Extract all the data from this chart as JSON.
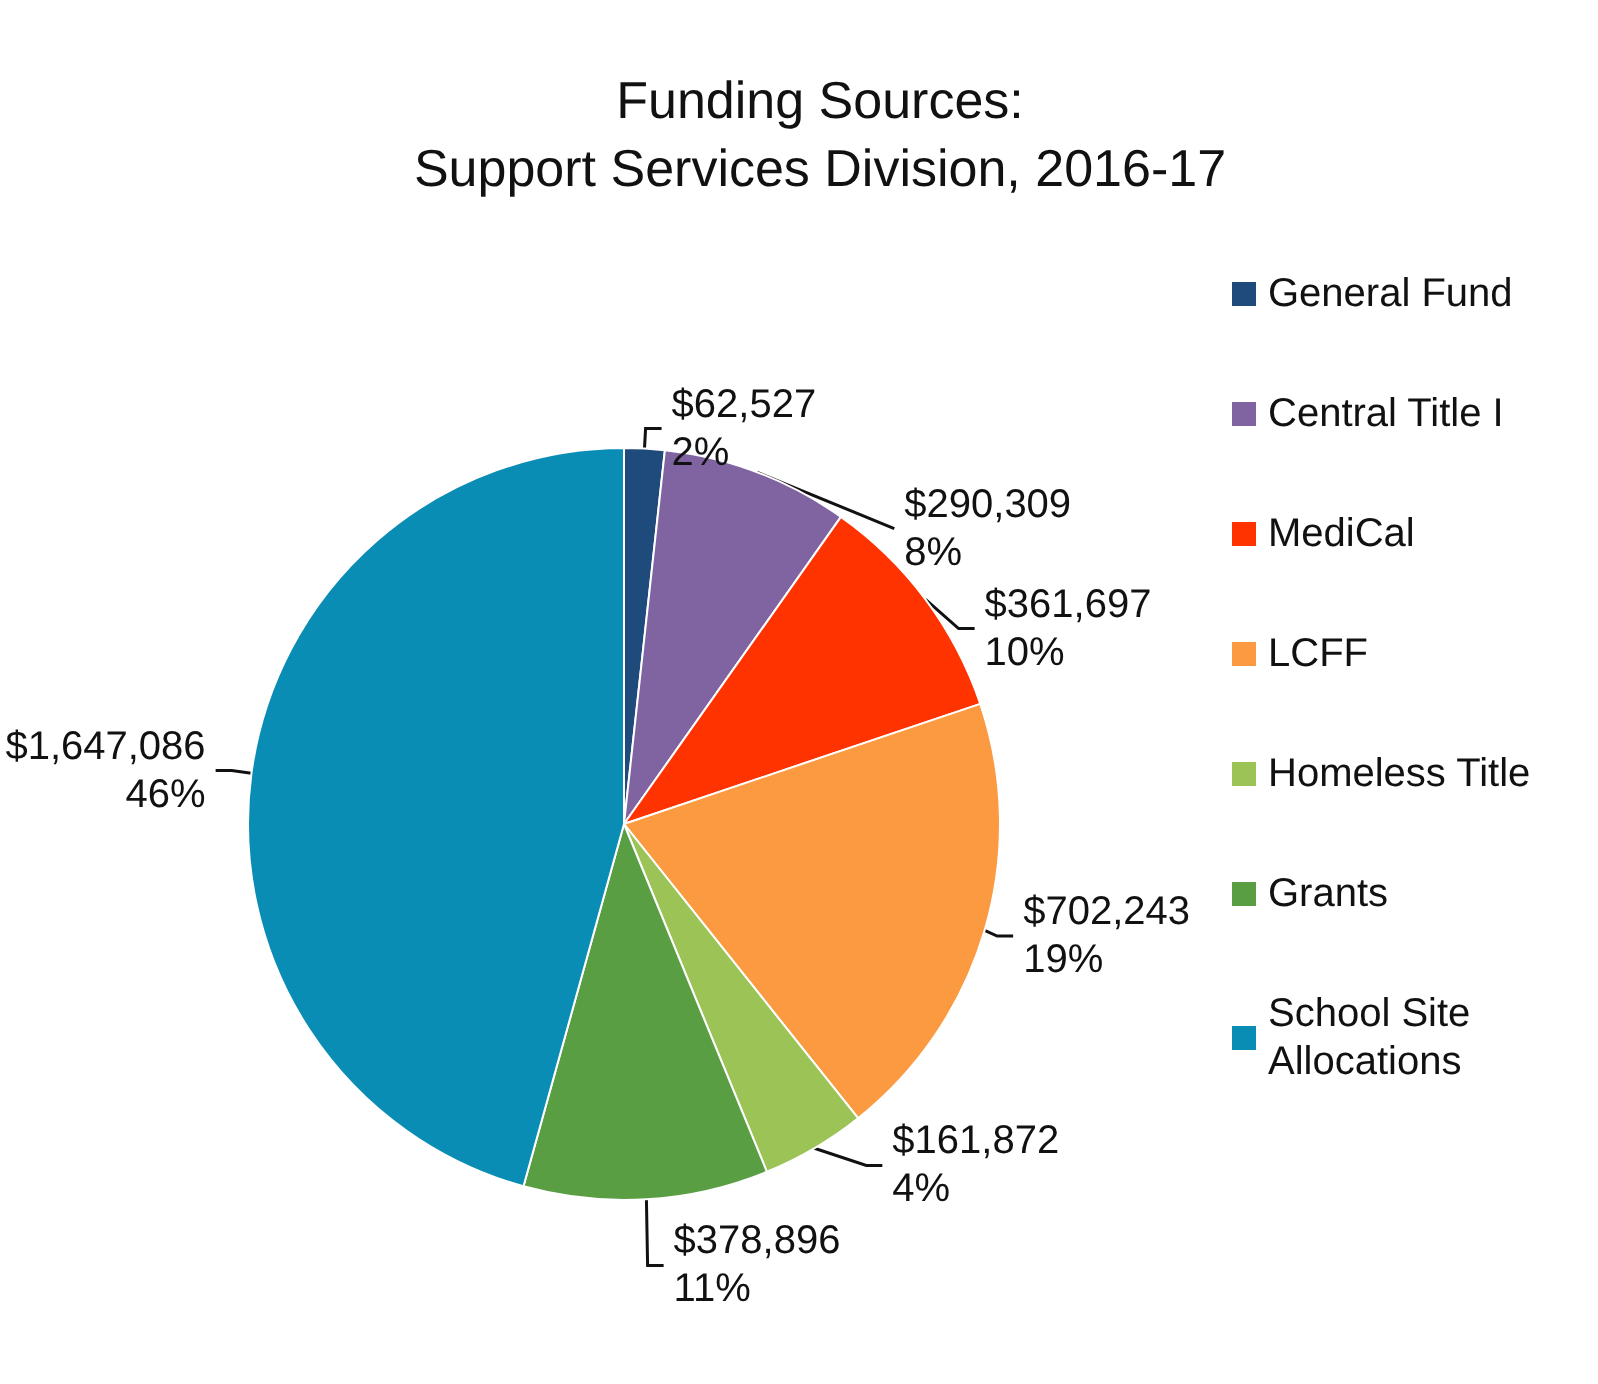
{
  "chart_data": {
    "type": "pie",
    "title": "Funding Sources:\nSupport Services Division, 2016-17",
    "categories": [
      "General Fund",
      "Central Title I",
      "MediCal",
      "LCFF",
      "Homeless Title",
      "Grants",
      "School Site Allocations"
    ],
    "values": [
      62527,
      290309,
      361697,
      702243,
      161872,
      378896,
      1647086
    ],
    "colors": [
      "#1f4a7c",
      "#8064a2",
      "#ff3300",
      "#fb9a40",
      "#9bc356",
      "#5a9e44",
      "#0a8db5"
    ],
    "value_labels": [
      "$62,527\n2%",
      "$290,309\n8%",
      "$361,697\n10%",
      "$702,243\n19%",
      "$161,872\n4%",
      "$378,896\n11%",
      "$1,647,086\n46%"
    ],
    "legend": "right"
  }
}
